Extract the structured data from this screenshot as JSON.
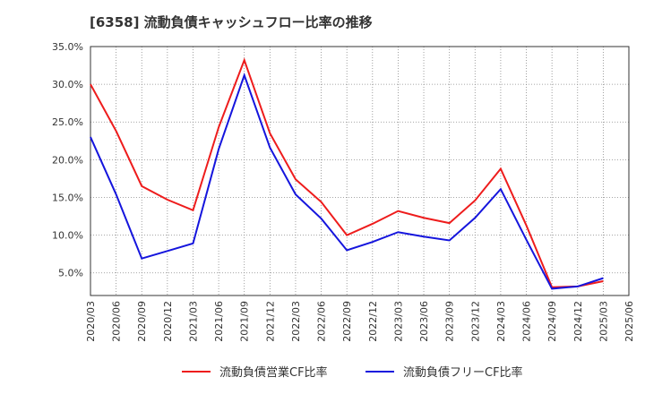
{
  "chart_data": {
    "type": "line",
    "title": "[6358]  流動負債キャッシュフロー比率の推移",
    "xlabel": "",
    "ylabel": "",
    "x": [
      "2020/03",
      "2020/06",
      "2020/09",
      "2020/12",
      "2021/03",
      "2021/06",
      "2021/09",
      "2021/12",
      "2022/03",
      "2022/06",
      "2022/09",
      "2022/12",
      "2023/03",
      "2023/06",
      "2023/09",
      "2023/12",
      "2024/03",
      "2024/06",
      "2024/09",
      "2024/12",
      "2025/03",
      "2025/06"
    ],
    "y_ticks": [
      "5.0%",
      "10.0%",
      "15.0%",
      "20.0%",
      "25.0%",
      "30.0%",
      "35.0%"
    ],
    "ylim": [
      2.0,
      35.0
    ],
    "grid": true,
    "legend_position": "bottom",
    "series": [
      {
        "name": "流動負債営業CF比率",
        "color": "#ee1c1c",
        "values": [
          30.0,
          23.8,
          16.5,
          14.7,
          13.3,
          24.3,
          33.2,
          23.5,
          17.4,
          14.4,
          10.0,
          11.5,
          13.2,
          12.3,
          11.6,
          14.6,
          18.8,
          11.3,
          3.1,
          3.2,
          3.9,
          null
        ]
      },
      {
        "name": "流動負債フリーCF比率",
        "color": "#1515dd",
        "values": [
          23.0,
          15.4,
          6.9,
          7.9,
          8.9,
          21.4,
          31.2,
          21.6,
          15.4,
          12.2,
          8.0,
          9.1,
          10.4,
          9.8,
          9.3,
          12.3,
          16.1,
          9.4,
          2.9,
          3.2,
          4.3,
          null
        ]
      }
    ]
  }
}
